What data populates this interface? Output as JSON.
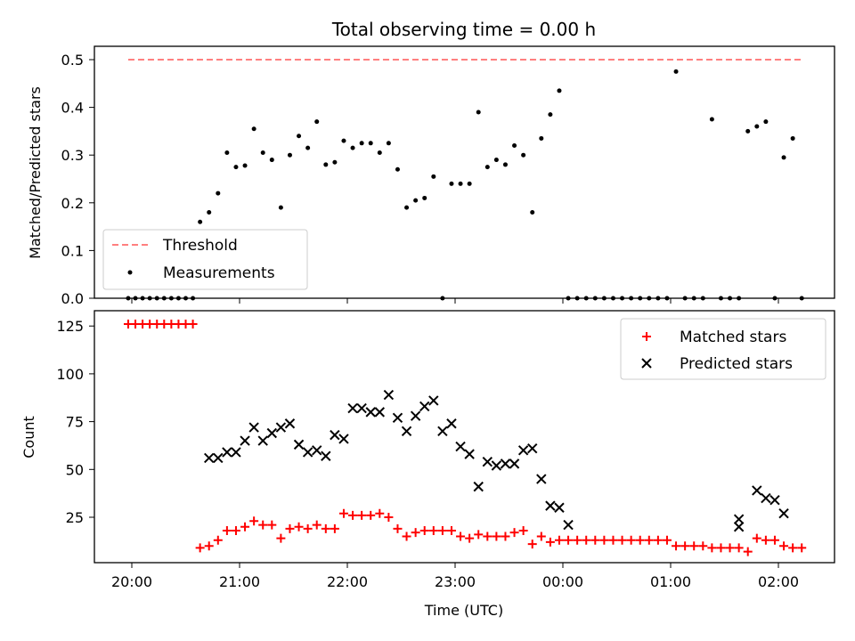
{
  "chart_data": [
    {
      "type": "scatter",
      "title": "Total observing time = 0.00 h",
      "ylabel": "Matched/Predicted stars",
      "xlabel": "",
      "ylim": [
        0,
        0.525
      ],
      "yticks": [
        0.0,
        0.1,
        0.2,
        0.3,
        0.4,
        0.5
      ],
      "ytick_labels": [
        "0.0",
        "0.1",
        "0.2",
        "0.3",
        "0.4",
        "0.5"
      ],
      "xticks": [
        "20:00",
        "21:00",
        "22:00",
        "23:00",
        "00:00",
        "01:00",
        "02:00"
      ],
      "legend_position": "lower-left",
      "series": [
        {
          "name": "Threshold",
          "kind": "dashed-line",
          "color": "#ff7f7f",
          "x": [
            "19:58",
            "22:00",
            "00:00",
            "02:14"
          ],
          "y": [
            0.5,
            0.5,
            0.5,
            0.5
          ]
        },
        {
          "name": "Measurements",
          "kind": "dot",
          "color": "#000000",
          "x": [
            "19:58",
            "20:02",
            "20:06",
            "20:10",
            "20:14",
            "20:18",
            "20:22",
            "20:26",
            "20:30",
            "20:34",
            "20:38",
            "20:43",
            "20:48",
            "20:53",
            "20:58",
            "21:03",
            "21:08",
            "21:13",
            "21:18",
            "21:23",
            "21:28",
            "21:33",
            "21:38",
            "21:43",
            "21:48",
            "21:53",
            "21:58",
            "22:03",
            "22:08",
            "22:13",
            "22:18",
            "22:23",
            "22:28",
            "22:33",
            "22:38",
            "22:43",
            "22:48",
            "22:53",
            "22:58",
            "23:03",
            "23:08",
            "23:13",
            "23:18",
            "23:23",
            "23:28",
            "23:33",
            "23:38",
            "23:43",
            "23:48",
            "23:53",
            "23:58",
            "00:03",
            "00:08",
            "00:13",
            "00:18",
            "00:23",
            "00:28",
            "00:33",
            "00:38",
            "00:43",
            "00:48",
            "00:53",
            "00:58",
            "01:03",
            "01:08",
            "01:13",
            "01:18",
            "01:23",
            "01:28",
            "01:33",
            "01:38",
            "01:43",
            "01:48",
            "01:53",
            "01:58",
            "02:03",
            "02:08",
            "02:13"
          ],
          "y": [
            0,
            0,
            0,
            0,
            0,
            0,
            0,
            0,
            0,
            0,
            0.16,
            0.18,
            0.22,
            0.305,
            0.275,
            0.278,
            0.355,
            0.305,
            0.29,
            0.19,
            0.3,
            0.34,
            0.315,
            0.37,
            0.28,
            0.285,
            0.33,
            0.315,
            0.325,
            0.325,
            0.305,
            0.325,
            0.27,
            0.19,
            0.205,
            0.21,
            0.255,
            0,
            0.24,
            0.24,
            0.24,
            0.39,
            0.275,
            0.29,
            0.28,
            0.32,
            0.3,
            0.18,
            0.335,
            0.385,
            0.435,
            0,
            0,
            0,
            0,
            0,
            0,
            0,
            0,
            0,
            0,
            0,
            0,
            0.475,
            0,
            0,
            0,
            0.375,
            0,
            0,
            0,
            0.35,
            0.36,
            0.37,
            0,
            0.295,
            0.335,
            0
          ]
        }
      ]
    },
    {
      "type": "scatter",
      "title": "",
      "ylabel": "Count",
      "xlabel": "Time (UTC)",
      "ylim": [
        1,
        133
      ],
      "yticks": [
        25,
        50,
        75,
        100,
        125
      ],
      "ytick_labels": [
        "25",
        "50",
        "75",
        "100",
        "125"
      ],
      "xticks": [
        "20:00",
        "21:00",
        "22:00",
        "23:00",
        "00:00",
        "01:00",
        "02:00"
      ],
      "legend_position": "upper-right",
      "series": [
        {
          "name": "Matched stars",
          "kind": "plus",
          "color": "#ff0000",
          "x": [
            "19:58",
            "20:02",
            "20:06",
            "20:10",
            "20:14",
            "20:18",
            "20:22",
            "20:26",
            "20:30",
            "20:34",
            "20:38",
            "20:43",
            "20:48",
            "20:53",
            "20:58",
            "21:03",
            "21:08",
            "21:13",
            "21:18",
            "21:23",
            "21:28",
            "21:33",
            "21:38",
            "21:43",
            "21:48",
            "21:53",
            "21:58",
            "22:03",
            "22:08",
            "22:13",
            "22:18",
            "22:23",
            "22:28",
            "22:33",
            "22:38",
            "22:43",
            "22:48",
            "22:53",
            "22:58",
            "23:03",
            "23:08",
            "23:13",
            "23:18",
            "23:23",
            "23:28",
            "23:33",
            "23:38",
            "23:43",
            "23:48",
            "23:53",
            "23:58",
            "00:03",
            "00:08",
            "00:13",
            "00:18",
            "00:23",
            "00:28",
            "00:33",
            "00:38",
            "00:43",
            "00:48",
            "00:53",
            "00:58",
            "01:03",
            "01:08",
            "01:13",
            "01:18",
            "01:23",
            "01:28",
            "01:33",
            "01:38",
            "01:43",
            "01:48",
            "01:53",
            "01:58",
            "02:03",
            "02:08",
            "02:13"
          ],
          "y": [
            126,
            126,
            126,
            126,
            126,
            126,
            126,
            126,
            126,
            126,
            9,
            10,
            13,
            18,
            18,
            20,
            23,
            21,
            21,
            14,
            19,
            20,
            19,
            21,
            19,
            19,
            27,
            26,
            26,
            26,
            27,
            25,
            19,
            15,
            17,
            18,
            18,
            18,
            18,
            15,
            14,
            16,
            15,
            15,
            15,
            17,
            18,
            11,
            15,
            12,
            13,
            13,
            13,
            13,
            13,
            13,
            13,
            13,
            13,
            13,
            13,
            13,
            13,
            10,
            10,
            10,
            10,
            9,
            9,
            9,
            9,
            7,
            14,
            13,
            13,
            10,
            9,
            9
          ]
        },
        {
          "name": "Predicted stars",
          "kind": "x",
          "color": "#000000",
          "x": [
            "20:43",
            "20:48",
            "20:53",
            "20:58",
            "21:03",
            "21:08",
            "21:13",
            "21:18",
            "21:23",
            "21:28",
            "21:33",
            "21:38",
            "21:43",
            "21:48",
            "21:53",
            "21:58",
            "22:03",
            "22:08",
            "22:13",
            "22:18",
            "22:23",
            "22:28",
            "22:33",
            "22:38",
            "22:43",
            "22:48",
            "22:53",
            "22:58",
            "23:03",
            "23:08",
            "23:13",
            "23:18",
            "23:23",
            "23:28",
            "23:33",
            "23:38",
            "23:43",
            "23:48",
            "23:53",
            "23:58",
            "00:03",
            "01:38",
            "01:38",
            "01:48",
            "01:53",
            "01:58",
            "02:03"
          ],
          "y": [
            56,
            56,
            59,
            59,
            65,
            72,
            65,
            69,
            72,
            74,
            63,
            59,
            60,
            57,
            68,
            66,
            82,
            82,
            80,
            80,
            89,
            77,
            70,
            78,
            83,
            86,
            70,
            74,
            62,
            58,
            41,
            54,
            52,
            53,
            53,
            60,
            61,
            45,
            31,
            30,
            21,
            24,
            20,
            39,
            35,
            34,
            27
          ]
        }
      ]
    }
  ]
}
